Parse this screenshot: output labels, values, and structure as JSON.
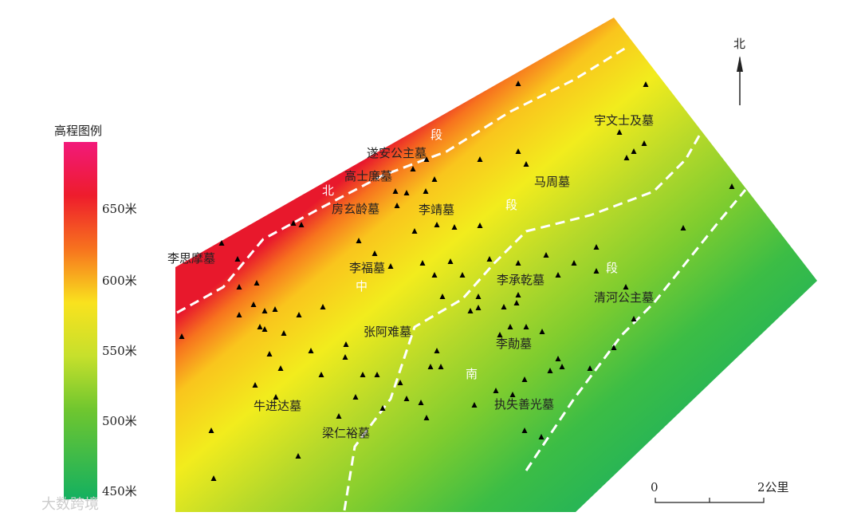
{
  "legend": {
    "title": "高程图例",
    "labels": [
      "650米",
      "600米",
      "550米",
      "500米",
      "450米"
    ]
  },
  "tombs": [
    "李思摩墓",
    "遂安公主墓",
    "高士廉墓",
    "房玄龄墓",
    "李靖墓",
    "李福墓",
    "马周墓",
    "宇文士及墓",
    "李承乾墓",
    "清河公主墓",
    "张阿难墓",
    "李勣墓",
    "牛进达墓",
    "梁仁裕墓",
    "执失善光墓"
  ],
  "zones": [
    {
      "chars": [
        "北",
        "段"
      ]
    },
    {
      "chars": [
        "中",
        "段"
      ]
    },
    {
      "chars": [
        "南",
        "段"
      ]
    }
  ],
  "compass": "北",
  "scale": {
    "start": "0",
    "end": "2公里"
  },
  "watermark": "大数跨境"
}
